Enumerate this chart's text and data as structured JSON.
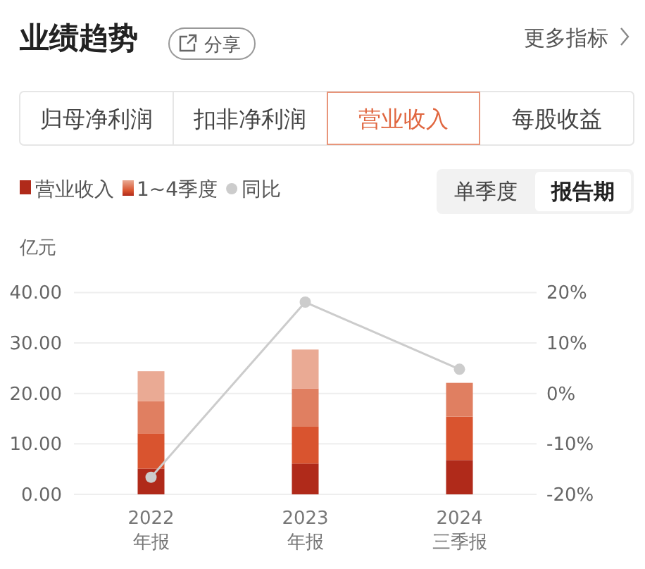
{
  "chart_data": {
    "type": "bar",
    "title": "业绩趋势",
    "ylabel": "亿元",
    "categories": [
      "2022\n年报",
      "2023\n年报",
      "2024\n三季报"
    ],
    "stacked": true,
    "series": [
      {
        "name": "营业收入",
        "color": "#b02a1a",
        "values": [
          5.1,
          6.1,
          6.8
        ]
      },
      {
        "color": "#d9542f",
        "values": [
          7.0,
          7.3,
          8.6
        ]
      },
      {
        "color": "#e07f61",
        "values": [
          6.4,
          7.6,
          6.7
        ]
      },
      {
        "color": "#eaaa94",
        "values": [
          5.9,
          7.7,
          null
        ]
      },
      {
        "name": "同比",
        "type": "line",
        "axis": "y2",
        "color": "#cccccc",
        "marker": "circle",
        "values": [
          -16.6,
          18.1,
          4.8
        ]
      }
    ],
    "ylim": [
      0,
      40
    ],
    "yticks": [
      {
        "value": 0,
        "label": "0.00"
      },
      {
        "value": 10,
        "label": "10.00"
      },
      {
        "value": 20,
        "label": "20.00"
      },
      {
        "value": 30,
        "label": "30.00"
      },
      {
        "value": 40,
        "label": "40.00"
      }
    ],
    "y2lim": [
      -20,
      20
    ],
    "y2ticks": [
      {
        "value": -20,
        "label": "-20%"
      },
      {
        "value": -10,
        "label": "-10%"
      },
      {
        "value": 0,
        "label": "0%"
      },
      {
        "value": 10,
        "label": "10%"
      },
      {
        "value": 20,
        "label": "20%"
      }
    ],
    "grid": "y",
    "legend": "top left",
    "annotations": [
      "分享",
      "更多指标",
      "归母净利润",
      "扣非净利润",
      "营业收入",
      "每股收益",
      "1~4季度",
      "单季度",
      "报告期"
    ]
  }
}
